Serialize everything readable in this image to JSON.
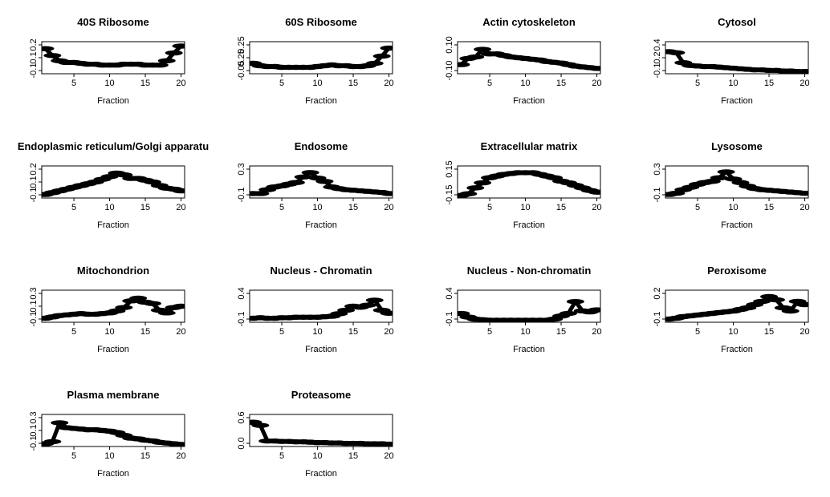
{
  "figure": {
    "layout": "4x4 grid of small-multiple line plots, 14 panels",
    "background": "#ffffff"
  },
  "chart_data": [
    {
      "type": "line",
      "title": "40S Ribosome",
      "xlabel": "Fraction",
      "xlim": [
        0.5,
        20.5
      ],
      "ylim": [
        -0.1,
        0.27
      ],
      "xticks": [
        "5",
        "10",
        "15",
        "20"
      ],
      "yticks": [
        "-0.1",
        "0.1",
        "0.2"
      ],
      "marker_color": "#c0392b",
      "x": [
        1,
        2,
        3,
        4,
        5,
        6,
        7,
        8,
        9,
        10,
        11,
        12,
        13,
        14,
        15,
        16,
        17,
        18,
        19,
        20
      ],
      "y": [
        0.19,
        0.11,
        0.05,
        0.03,
        0.03,
        0.02,
        0.01,
        0.01,
        0.0,
        0.0,
        0.0,
        0.01,
        0.01,
        0.01,
        0.0,
        0.0,
        0.0,
        0.05,
        0.14,
        0.22
      ]
    },
    {
      "type": "line",
      "title": "60S Ribosome",
      "xlabel": "Fraction",
      "xlim": [
        0.5,
        20.5
      ],
      "ylim": [
        -0.1,
        0.3
      ],
      "xticks": [
        "5",
        "10",
        "15",
        "20"
      ],
      "yticks": [
        "-0.05",
        "0.25",
        "0.25"
      ],
      "marker_color": "#2e86c1",
      "x": [
        1,
        2,
        3,
        4,
        5,
        6,
        7,
        8,
        9,
        10,
        11,
        12,
        13,
        14,
        15,
        16,
        17,
        18,
        19,
        20
      ],
      "y": [
        0.03,
        0.0,
        -0.01,
        -0.01,
        -0.02,
        -0.02,
        -0.02,
        -0.02,
        -0.02,
        -0.01,
        0.0,
        0.01,
        0.0,
        0.0,
        -0.01,
        -0.01,
        0.0,
        0.03,
        0.12,
        0.22
      ]
    },
    {
      "type": "line",
      "title": "Actin cytoskeleton",
      "xlabel": "Fraction",
      "xlim": [
        0.5,
        20.5
      ],
      "ylim": [
        -0.12,
        0.3
      ],
      "xticks": [
        "5",
        "10",
        "15",
        "20"
      ],
      "yticks": [
        "-0.10",
        "0.10"
      ],
      "marker_color": "#2e8b57",
      "x": [
        1,
        2,
        3,
        4,
        5,
        6,
        7,
        8,
        9,
        10,
        11,
        12,
        13,
        14,
        15,
        16,
        17,
        18,
        19,
        20
      ],
      "y": [
        0.0,
        0.08,
        0.1,
        0.2,
        0.14,
        0.14,
        0.12,
        0.1,
        0.09,
        0.08,
        0.07,
        0.06,
        0.04,
        0.03,
        0.02,
        0.0,
        -0.02,
        -0.03,
        -0.04,
        -0.05
      ]
    },
    {
      "type": "line",
      "title": "Cytosol",
      "xlabel": "Fraction",
      "xlim": [
        0.5,
        20.5
      ],
      "ylim": [
        -0.1,
        0.48
      ],
      "xticks": [
        "5",
        "10",
        "15",
        "20"
      ],
      "yticks": [
        "-0.1",
        "0.2",
        "0.4"
      ],
      "marker_color": "#e67e22",
      "x": [
        1,
        2,
        3,
        4,
        5,
        6,
        7,
        8,
        9,
        10,
        11,
        12,
        13,
        14,
        15,
        16,
        17,
        18,
        19,
        20
      ],
      "y": [
        0.3,
        0.28,
        0.1,
        0.05,
        0.04,
        0.03,
        0.03,
        0.02,
        0.01,
        0.0,
        -0.01,
        -0.02,
        -0.03,
        -0.03,
        -0.04,
        -0.04,
        -0.05,
        -0.05,
        -0.06,
        -0.06
      ]
    },
    {
      "type": "line",
      "title": "Endoplasmic reticulum/Golgi apparatu",
      "xlabel": "Fraction",
      "xlim": [
        0.5,
        20.5
      ],
      "ylim": [
        -0.12,
        0.24
      ],
      "xticks": [
        "5",
        "10",
        "15",
        "20"
      ],
      "yticks": [
        "-0.1",
        "0.1",
        "0.2"
      ],
      "marker_color": "#f1c40f",
      "x": [
        1,
        2,
        3,
        4,
        5,
        6,
        7,
        8,
        9,
        10,
        11,
        12,
        13,
        14,
        15,
        16,
        17,
        18,
        19,
        20
      ],
      "y": [
        -0.08,
        -0.06,
        -0.04,
        -0.02,
        0.0,
        0.02,
        0.04,
        0.06,
        0.09,
        0.12,
        0.16,
        0.14,
        0.1,
        0.1,
        0.08,
        0.06,
        0.02,
        -0.01,
        -0.02,
        -0.04
      ]
    },
    {
      "type": "line",
      "title": "Endosome",
      "xlabel": "Fraction",
      "xlim": [
        0.5,
        20.5
      ],
      "ylim": [
        -0.2,
        0.38
      ],
      "xticks": [
        "5",
        "10",
        "15",
        "20"
      ],
      "yticks": [
        "-0.1",
        "0.3"
      ],
      "marker_color": "#7f8c8d",
      "x": [
        1,
        2,
        3,
        4,
        5,
        6,
        7,
        8,
        9,
        10,
        11,
        12,
        13,
        14,
        15,
        16,
        17,
        18,
        19,
        20
      ],
      "y": [
        -0.12,
        -0.12,
        -0.05,
        0.0,
        0.02,
        0.05,
        0.08,
        0.18,
        0.26,
        0.16,
        0.1,
        0.0,
        -0.03,
        -0.05,
        -0.06,
        -0.07,
        -0.08,
        -0.09,
        -0.1,
        -0.12
      ]
    },
    {
      "type": "line",
      "title": "Extracellular matrix",
      "xlabel": "Fraction",
      "xlim": [
        0.5,
        20.5
      ],
      "ylim": [
        -0.18,
        0.2
      ],
      "xticks": [
        "5",
        "10",
        "15",
        "20"
      ],
      "yticks": [
        "-0.15",
        "0.15"
      ],
      "marker_color": "#48c9b0",
      "x": [
        1,
        2,
        3,
        4,
        5,
        6,
        7,
        8,
        9,
        10,
        11,
        12,
        13,
        14,
        15,
        16,
        17,
        18,
        19,
        20
      ],
      "y": [
        -0.15,
        -0.13,
        -0.06,
        0.0,
        0.06,
        0.08,
        0.1,
        0.11,
        0.12,
        0.12,
        0.12,
        0.1,
        0.08,
        0.06,
        0.02,
        0.0,
        -0.03,
        -0.06,
        -0.09,
        -0.11
      ]
    },
    {
      "type": "line",
      "title": "Lysosome",
      "xlabel": "Fraction",
      "xlim": [
        0.5,
        20.5
      ],
      "ylim": [
        -0.18,
        0.36
      ],
      "xticks": [
        "5",
        "10",
        "15",
        "20"
      ],
      "yticks": [
        "-0.1",
        "0.3"
      ],
      "marker_color": "#a04000",
      "x": [
        1,
        2,
        3,
        4,
        5,
        6,
        7,
        8,
        9,
        10,
        11,
        12,
        13,
        14,
        15,
        16,
        17,
        18,
        19,
        20
      ],
      "y": [
        -0.12,
        -0.1,
        -0.04,
        0.0,
        0.05,
        0.08,
        0.1,
        0.16,
        0.26,
        0.14,
        0.08,
        0.02,
        -0.02,
        -0.04,
        -0.05,
        -0.06,
        -0.07,
        -0.08,
        -0.09,
        -0.1
      ]
    },
    {
      "type": "line",
      "title": "Mitochondrion",
      "xlabel": "Fraction",
      "xlim": [
        0.5,
        20.5
      ],
      "ylim": [
        -0.12,
        0.36
      ],
      "xticks": [
        "5",
        "10",
        "15",
        "20"
      ],
      "yticks": [
        "-0.1",
        "0.1",
        "0.3"
      ],
      "marker_color": "#e83e8c",
      "x": [
        1,
        2,
        3,
        4,
        5,
        6,
        7,
        8,
        9,
        10,
        11,
        12,
        13,
        14,
        15,
        16,
        17,
        18,
        19,
        20
      ],
      "y": [
        -0.06,
        -0.04,
        -0.02,
        -0.01,
        0.0,
        0.01,
        0.0,
        0.0,
        0.01,
        0.02,
        0.05,
        0.1,
        0.2,
        0.24,
        0.18,
        0.16,
        0.06,
        0.02,
        0.1,
        0.12
      ]
    },
    {
      "type": "line",
      "title": "Nucleus - Chromatin",
      "xlabel": "Fraction",
      "xlim": [
        0.5,
        20.5
      ],
      "ylim": [
        -0.12,
        0.52
      ],
      "xticks": [
        "5",
        "10",
        "15",
        "20"
      ],
      "yticks": [
        "-0.1",
        "0.4"
      ],
      "marker_color": "#8e44ad",
      "x": [
        1,
        2,
        3,
        4,
        5,
        6,
        7,
        8,
        9,
        10,
        11,
        12,
        13,
        14,
        15,
        16,
        17,
        18,
        19,
        20
      ],
      "y": [
        -0.04,
        -0.03,
        -0.04,
        -0.04,
        -0.03,
        -0.03,
        -0.02,
        -0.02,
        -0.02,
        -0.02,
        -0.01,
        0.0,
        0.05,
        0.12,
        0.2,
        0.18,
        0.22,
        0.32,
        0.12,
        0.06
      ]
    },
    {
      "type": "line",
      "title": "Nucleus - Non-chromatin",
      "xlabel": "Fraction",
      "xlim": [
        0.5,
        20.5
      ],
      "ylim": [
        -0.12,
        0.5
      ],
      "xticks": [
        "5",
        "10",
        "15",
        "20"
      ],
      "yticks": [
        "-0.1",
        "0.4"
      ],
      "marker_color": "#9acd32",
      "x": [
        1,
        2,
        3,
        4,
        5,
        6,
        7,
        8,
        9,
        10,
        11,
        12,
        13,
        14,
        15,
        16,
        17,
        18,
        19,
        20
      ],
      "y": [
        0.05,
        -0.02,
        -0.06,
        -0.07,
        -0.08,
        -0.08,
        -0.08,
        -0.08,
        -0.08,
        -0.08,
        -0.08,
        -0.08,
        -0.08,
        -0.06,
        0.0,
        0.05,
        0.28,
        0.1,
        0.08,
        0.12
      ]
    },
    {
      "type": "line",
      "title": "Peroxisome",
      "xlabel": "Fraction",
      "xlim": [
        0.5,
        20.5
      ],
      "ylim": [
        -0.12,
        0.28
      ],
      "xticks": [
        "5",
        "10",
        "15",
        "20"
      ],
      "yticks": [
        "-0.1",
        "0.2"
      ],
      "marker_color": "#4169e1",
      "x": [
        1,
        2,
        3,
        4,
        5,
        6,
        7,
        8,
        9,
        10,
        11,
        12,
        13,
        14,
        15,
        16,
        17,
        18,
        19,
        20
      ],
      "y": [
        -0.08,
        -0.07,
        -0.05,
        -0.04,
        -0.03,
        -0.02,
        -0.01,
        0.0,
        0.01,
        0.02,
        0.04,
        0.06,
        0.1,
        0.14,
        0.2,
        0.16,
        0.06,
        0.02,
        0.14,
        0.1
      ]
    },
    {
      "type": "line",
      "title": "Plasma membrane",
      "xlabel": "Fraction",
      "xlim": [
        0.5,
        20.5
      ],
      "ylim": [
        -0.12,
        0.34
      ],
      "xticks": [
        "5",
        "10",
        "15",
        "20"
      ],
      "yticks": [
        "-0.1",
        "0.1",
        "0.3"
      ],
      "marker_color": "#1a237e",
      "x": [
        1,
        2,
        3,
        4,
        5,
        6,
        7,
        8,
        9,
        10,
        11,
        12,
        13,
        14,
        15,
        16,
        17,
        18,
        19,
        20
      ],
      "y": [
        -0.08,
        -0.05,
        0.22,
        0.15,
        0.14,
        0.13,
        0.12,
        0.12,
        0.11,
        0.1,
        0.08,
        0.04,
        0.0,
        -0.01,
        -0.03,
        -0.04,
        -0.06,
        -0.07,
        -0.08,
        -0.09
      ]
    },
    {
      "type": "line",
      "title": "Proteasome",
      "xlabel": "Fraction",
      "xlim": [
        0.5,
        20.5
      ],
      "ylim": [
        -0.12,
        0.7
      ],
      "xticks": [
        "5",
        "10",
        "15",
        "20"
      ],
      "yticks": [
        "0.0",
        "0.6"
      ],
      "marker_color": "#8b8b5a",
      "x": [
        1,
        2,
        3,
        4,
        5,
        6,
        7,
        8,
        9,
        10,
        11,
        12,
        13,
        14,
        15,
        16,
        17,
        18,
        19,
        20
      ],
      "y": [
        0.5,
        0.42,
        0.02,
        0.02,
        0.01,
        0.01,
        0.0,
        0.0,
        -0.01,
        -0.02,
        -0.02,
        -0.03,
        -0.03,
        -0.04,
        -0.04,
        -0.04,
        -0.05,
        -0.05,
        -0.05,
        -0.06
      ]
    }
  ]
}
